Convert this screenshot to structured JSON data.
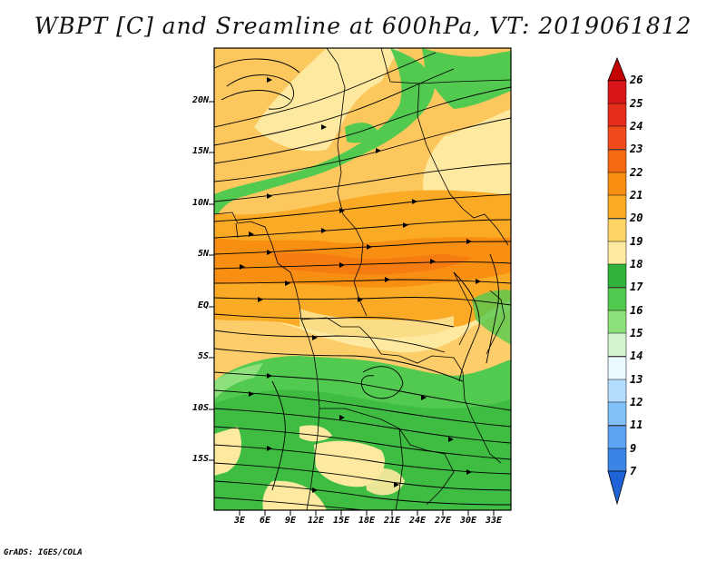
{
  "title": "WBPT [C] and Sreamline at 600hPa, VT: 2019061812",
  "credit": "GrADS: IGES/COLA",
  "map": {
    "lat_labels": [
      "20N",
      "15N",
      "10N",
      "5N",
      "EQ",
      "5S",
      "10S",
      "15S"
    ],
    "lon_labels": [
      "3E",
      "6E",
      "9E",
      "12E",
      "15E",
      "18E",
      "21E",
      "24E",
      "27E",
      "30E",
      "33E"
    ],
    "fields": [
      "wet-bulb potential temperature shading",
      "600hPa streamlines"
    ]
  },
  "colorbar": {
    "labels": [
      "26",
      "25",
      "24",
      "23",
      "22",
      "21",
      "20",
      "19",
      "18",
      "17",
      "16",
      "15",
      "14",
      "13",
      "12",
      "11",
      "9",
      "7"
    ],
    "colors": [
      "#c40000",
      "#d8161a",
      "#e52d1c",
      "#f14a1c",
      "#f46a12",
      "#f88e12",
      "#fbaa26",
      "#fdd566",
      "#fdeaa0",
      "#2fb33a",
      "#52c94f",
      "#8ee07c",
      "#d4f3cf",
      "#eaf8ff",
      "#b4dcff",
      "#82c0fa",
      "#5ea4f4",
      "#3a84e6",
      "#1e64d8"
    ]
  }
}
